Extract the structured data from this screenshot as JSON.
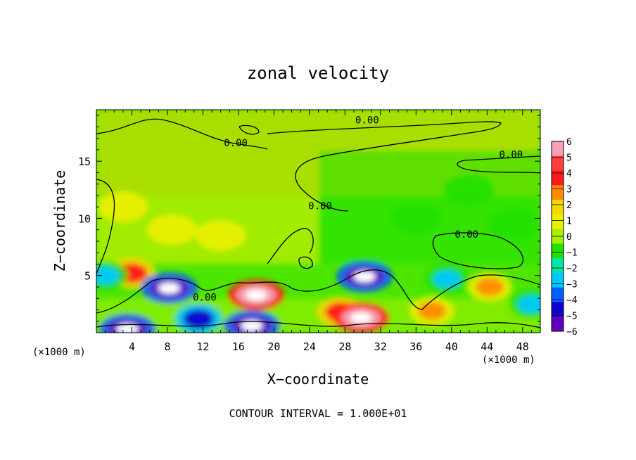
{
  "chart_data": {
    "type": "heatmap",
    "title": "zonal velocity",
    "xlabel": "X−coordinate",
    "ylabel": "Z−coordinate",
    "x_unit": "(×1000 m)",
    "y_unit": "(×1000 m)",
    "xlim": [
      0,
      50
    ],
    "ylim": [
      0,
      19.5
    ],
    "x_ticks": [
      4,
      8,
      12,
      16,
      20,
      24,
      28,
      32,
      36,
      40,
      44,
      48
    ],
    "y_ticks": [
      5,
      10,
      15
    ],
    "x_tick_labels": [
      "4",
      "8",
      "12",
      "16",
      "20",
      "24",
      "28",
      "32",
      "36",
      "40",
      "44",
      "48"
    ],
    "y_tick_labels": [
      "5",
      "10",
      "15"
    ],
    "colorbar": {
      "levels": [
        6,
        5,
        4,
        3,
        2,
        1,
        0,
        -1,
        -2,
        -3,
        -4,
        -5,
        -6
      ],
      "labels": [
        "6",
        "5",
        "4",
        "3",
        "2",
        "1",
        "0",
        "−1",
        "−2",
        "−3",
        "−4",
        "−5",
        "−6"
      ],
      "colors": [
        "#f5a0b4",
        "#ff3e3e",
        "#ff1a1a",
        "#ff8c00",
        "#f5d800",
        "#e8f000",
        "#a8f000",
        "#22e000",
        "#00e8a8",
        "#00c8ff",
        "#0060ff",
        "#1000d0",
        "#6000c0"
      ]
    },
    "contour_labels": [
      {
        "text": "0.00",
        "x": 30.5,
        "z": 18.6
      },
      {
        "text": "0.00",
        "x": 15.7,
        "z": 16.6
      },
      {
        "text": "0.00",
        "x": 46.7,
        "z": 15.6
      },
      {
        "text": "0.00",
        "x": 25.2,
        "z": 11.1
      },
      {
        "text": "0.00",
        "x": 41.7,
        "z": 8.6
      },
      {
        "text": "0.00",
        "x": 12.2,
        "z": 3.1
      }
    ],
    "features": [
      {
        "type": "max",
        "x": 4,
        "z": 5.2,
        "level": 4
      },
      {
        "type": "max",
        "x": 18,
        "z": 3.3,
        "level": 6
      },
      {
        "type": "max",
        "x": 27.5,
        "z": 1.8,
        "level": 4
      },
      {
        "type": "max",
        "x": 29.8,
        "z": 1.3,
        "level": 6
      },
      {
        "type": "max",
        "x": 44.3,
        "z": 4.0,
        "level": 3
      },
      {
        "type": "max",
        "x": 37.8,
        "z": 1.9,
        "level": 3
      },
      {
        "type": "min",
        "x": 8.2,
        "z": 3.9,
        "level": -6
      },
      {
        "type": "min",
        "x": 30.2,
        "z": 4.9,
        "level": -6
      },
      {
        "type": "min",
        "x": 17.5,
        "z": 0.6,
        "level": -6
      },
      {
        "type": "min",
        "x": 3.5,
        "z": 0.3,
        "level": -6
      },
      {
        "type": "min",
        "x": 11.5,
        "z": 1.2,
        "level": -5
      },
      {
        "type": "min",
        "x": 1.0,
        "z": 5.0,
        "level": -3
      },
      {
        "type": "min",
        "x": 39.5,
        "z": 4.7,
        "level": -3
      },
      {
        "type": "min",
        "x": 49.0,
        "z": 2.5,
        "level": -3
      },
      {
        "type": "max",
        "x": 8.5,
        "z": 9.0,
        "level": 1
      },
      {
        "type": "max",
        "x": 3.0,
        "z": 11.0,
        "level": 1
      },
      {
        "type": "max",
        "x": 14.0,
        "z": 8.5,
        "level": 1
      },
      {
        "type": "min",
        "x": 36.0,
        "z": 10.0,
        "level": -1
      },
      {
        "type": "min",
        "x": 42.0,
        "z": 12.5,
        "level": -1
      },
      {
        "type": "min",
        "x": 47.0,
        "z": 9.5,
        "level": -1
      }
    ],
    "footer": "CONTOUR INTERVAL = 1.000E+01"
  }
}
